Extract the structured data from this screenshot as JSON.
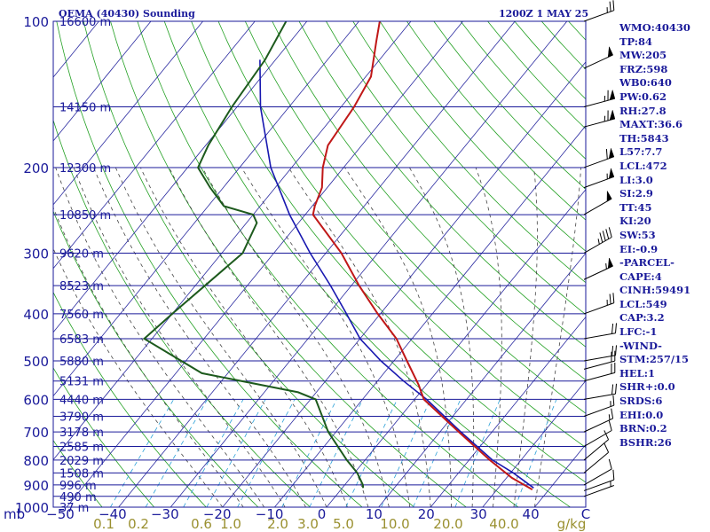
{
  "header": {
    "title": "OEMA (40430) Sounding",
    "datetime": "1200Z  1 MAY 25"
  },
  "colors": {
    "frame": "#1a1a9a",
    "isobar": "#1a1a9a",
    "isotherm": "#2a2aa0",
    "dry_adiabat": "#23a023",
    "moist_adiabat": "#444444",
    "mixing_ratio": "#2aa0d8",
    "temperature": "#c01818",
    "dewpoint": "#1d5a1d",
    "parcel": "#1818b0",
    "wind_barb": "#000000",
    "temp_tick": "#1a1a9a",
    "mixing_tick": "#9a9030"
  },
  "indices": [
    "WMO:40430",
    "TP:84",
    "MW:205",
    "FRZ:598",
    "WB0:640",
    "PW:0.62",
    "RH:27.8",
    "MAXT:36.6",
    "TH:5843",
    "L57:7.7",
    "LCL:472",
    "LI:3.0",
    "SI:2.9",
    "TT:45",
    "KI:20",
    "SW:53",
    "EI:-0.9",
    "-PARCEL-",
    "CAPE:4",
    "CINH:59491",
    "LCL:549",
    "CAP:3.2",
    "LFC:-1",
    "-WIND-",
    "STM:257/15",
    "HEL:1",
    "SHR+:0.0",
    "SRDS:6",
    "EHI:0.0",
    "BRN:0.2",
    "BSHR:26"
  ],
  "chart_data": {
    "type": "skew-t",
    "y_unit_label": "mb",
    "x_unit_label": "C",
    "mixing_ratio_unit_label": "g/kg",
    "pressure_range": [
      1000,
      100
    ],
    "pressure_ticks": [
      {
        "p": 100,
        "label": "100"
      },
      {
        "p": 200,
        "label": "200"
      },
      {
        "p": 300,
        "label": "300"
      },
      {
        "p": 400,
        "label": "400"
      },
      {
        "p": 500,
        "label": "500"
      },
      {
        "p": 600,
        "label": "600"
      },
      {
        "p": 700,
        "label": "700"
      },
      {
        "p": 800,
        "label": "800"
      },
      {
        "p": 900,
        "label": "900"
      },
      {
        "p": 1000,
        "label": "1000"
      }
    ],
    "temperature_ticks": [
      {
        "t": -50,
        "label": "−50"
      },
      {
        "t": -40,
        "label": "−40"
      },
      {
        "t": -30,
        "label": "−30"
      },
      {
        "t": -20,
        "label": "−20"
      },
      {
        "t": -10,
        "label": "−10"
      },
      {
        "t": 0,
        "label": "0"
      },
      {
        "t": 10,
        "label": "10"
      },
      {
        "t": 20,
        "label": "20"
      },
      {
        "t": 30,
        "label": "30"
      },
      {
        "t": 40,
        "label": "40"
      }
    ],
    "mixing_ratio_ticks": [
      {
        "w": 0.1,
        "label": "0.1"
      },
      {
        "w": 0.2,
        "label": "0.2"
      },
      {
        "w": 0.6,
        "label": "0.6"
      },
      {
        "w": 1.0,
        "label": "1.0"
      },
      {
        "w": 2.0,
        "label": "2.0"
      },
      {
        "w": 3.0,
        "label": "3.0"
      },
      {
        "w": 5.0,
        "label": "5.0"
      },
      {
        "w": 10.0,
        "label": "10.0"
      },
      {
        "w": 20.0,
        "label": "20.0"
      },
      {
        "w": 40.0,
        "label": "40.0"
      }
    ],
    "mixing_ratio_lines": [
      0.1,
      0.2,
      0.4,
      0.6,
      1.0,
      2.0,
      3.0,
      5.0,
      8.0,
      12.0,
      20.0,
      40.0
    ],
    "heights": [
      {
        "p": 100,
        "label": "16600 m"
      },
      {
        "p": 150,
        "label": "14150 m"
      },
      {
        "p": 200,
        "label": "12300 m"
      },
      {
        "p": 250,
        "label": "10850 m"
      },
      {
        "p": 300,
        "label": "9620 m"
      },
      {
        "p": 350,
        "label": "8523 m"
      },
      {
        "p": 400,
        "label": "7560 m"
      },
      {
        "p": 450,
        "label": "6583 m"
      },
      {
        "p": 500,
        "label": "5880 m"
      },
      {
        "p": 550,
        "label": "5131 m"
      },
      {
        "p": 600,
        "label": "4440 m"
      },
      {
        "p": 650,
        "label": "3790 m"
      },
      {
        "p": 700,
        "label": "3178 m"
      },
      {
        "p": 750,
        "label": "2585 m"
      },
      {
        "p": 800,
        "label": "2029 m"
      },
      {
        "p": 850,
        "label": "1508 m"
      },
      {
        "p": 900,
        "label": "996 m"
      },
      {
        "p": 950,
        "label": "490 m"
      },
      {
        "p": 1000,
        "label": "37 m"
      }
    ],
    "temperature_profile": [
      [
        920,
        36.8
      ],
      [
        913,
        36.0
      ],
      [
        870,
        31.0
      ],
      [
        800,
        24.0
      ],
      [
        700,
        13.6
      ],
      [
        600,
        1.8
      ],
      [
        560,
        -1.5
      ],
      [
        500,
        -7.5
      ],
      [
        450,
        -13.0
      ],
      [
        400,
        -20.5
      ],
      [
        350,
        -28.5
      ],
      [
        300,
        -37.0
      ],
      [
        250,
        -48.5
      ],
      [
        240,
        -49.5
      ],
      [
        220,
        -51.0
      ],
      [
        200,
        -54.0
      ],
      [
        180,
        -56.5
      ],
      [
        150,
        -57.5
      ],
      [
        130,
        -59.0
      ],
      [
        110,
        -63.5
      ],
      [
        100,
        -66.0
      ]
    ],
    "dewpoint_profile": [
      [
        913,
        4.0
      ],
      [
        900,
        3.5
      ],
      [
        850,
        0.5
      ],
      [
        800,
        -3.5
      ],
      [
        700,
        -11.5
      ],
      [
        600,
        -19.0
      ],
      [
        580,
        -23.5
      ],
      [
        530,
        -45.0
      ],
      [
        450,
        -61.5
      ],
      [
        400,
        -60.0
      ],
      [
        300,
        -56.0
      ],
      [
        260,
        -58.0
      ],
      [
        250,
        -60.0
      ],
      [
        240,
        -67.0
      ],
      [
        220,
        -72.5
      ],
      [
        200,
        -78.0
      ],
      [
        180,
        -79.5
      ],
      [
        150,
        -81.0
      ],
      [
        120,
        -82.0
      ],
      [
        100,
        -84.0
      ]
    ],
    "parcel_profile": [
      [
        913,
        36.8
      ],
      [
        850,
        30.5
      ],
      [
        800,
        24.5
      ],
      [
        700,
        14.0
      ],
      [
        600,
        2.3
      ],
      [
        550,
        -5.0
      ],
      [
        500,
        -12.5
      ],
      [
        450,
        -20.0
      ],
      [
        400,
        -26.5
      ],
      [
        350,
        -34.0
      ],
      [
        300,
        -43.0
      ],
      [
        250,
        -53.0
      ],
      [
        200,
        -64.0
      ],
      [
        150,
        -75.5
      ],
      [
        120,
        -83.0
      ]
    ],
    "wind": [
      {
        "p": 100,
        "dir": 250,
        "spd": 25
      },
      {
        "p": 125,
        "dir": 245,
        "spd": 50
      },
      {
        "p": 150,
        "dir": 255,
        "spd": 65
      },
      {
        "p": 165,
        "dir": 255,
        "spd": 65
      },
      {
        "p": 200,
        "dir": 250,
        "spd": 60
      },
      {
        "p": 220,
        "dir": 250,
        "spd": 55
      },
      {
        "p": 250,
        "dir": 240,
        "spd": 50
      },
      {
        "p": 300,
        "dir": 240,
        "spd": 45
      },
      {
        "p": 340,
        "dir": 245,
        "spd": 55
      },
      {
        "p": 400,
        "dir": 250,
        "spd": 25
      },
      {
        "p": 450,
        "dir": 260,
        "spd": 20
      },
      {
        "p": 500,
        "dir": 260,
        "spd": 20
      },
      {
        "p": 520,
        "dir": 255,
        "spd": 20
      },
      {
        "p": 550,
        "dir": 255,
        "spd": 20
      },
      {
        "p": 600,
        "dir": 260,
        "spd": 20
      },
      {
        "p": 650,
        "dir": 250,
        "spd": 15
      },
      {
        "p": 700,
        "dir": 245,
        "spd": 15
      },
      {
        "p": 750,
        "dir": 240,
        "spd": 10
      },
      {
        "p": 800,
        "dir": 230,
        "spd": 10
      },
      {
        "p": 850,
        "dir": 230,
        "spd": 10
      },
      {
        "p": 900,
        "dir": 240,
        "spd": 10
      },
      {
        "p": 925,
        "dir": 250,
        "spd": 10
      },
      {
        "p": 950,
        "dir": 250,
        "spd": 5
      }
    ]
  }
}
